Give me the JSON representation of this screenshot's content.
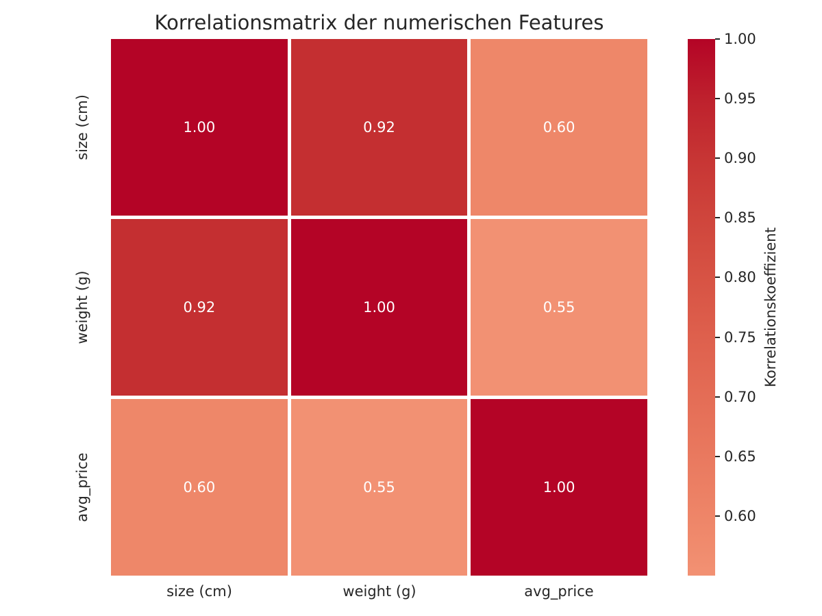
{
  "chart_data": {
    "type": "heatmap",
    "title": "Korrelationsmatrix der numerischen Features",
    "categories": [
      "size (cm)",
      "weight (g)",
      "avg_price"
    ],
    "x_tick_labels": [
      "size (cm)",
      "weight (g)",
      "avg_price"
    ],
    "y_tick_labels": [
      "size (cm)",
      "weight (g)",
      "avg_price"
    ],
    "matrix": [
      [
        1.0,
        0.92,
        0.6
      ],
      [
        0.92,
        1.0,
        0.55
      ],
      [
        0.6,
        0.55,
        1.0
      ]
    ],
    "cells": [
      {
        "row": "size (cm)",
        "col": "size (cm)",
        "value": 1.0,
        "label": "1.00",
        "color": "#b40426"
      },
      {
        "row": "size (cm)",
        "col": "weight (g)",
        "value": 0.92,
        "label": "0.92",
        "color": "#c42f31"
      },
      {
        "row": "size (cm)",
        "col": "avg_price",
        "value": 0.6,
        "label": "0.60",
        "color": "#ee8769"
      },
      {
        "row": "weight (g)",
        "col": "size (cm)",
        "value": 0.92,
        "label": "0.92",
        "color": "#c42f31"
      },
      {
        "row": "weight (g)",
        "col": "weight (g)",
        "value": 1.0,
        "label": "1.00",
        "color": "#b40426"
      },
      {
        "row": "weight (g)",
        "col": "avg_price",
        "value": 0.55,
        "label": "0.55",
        "color": "#f29173"
      },
      {
        "row": "avg_price",
        "col": "size (cm)",
        "value": 0.6,
        "label": "0.60",
        "color": "#ee8769"
      },
      {
        "row": "avg_price",
        "col": "weight (g)",
        "value": 0.55,
        "label": "0.55",
        "color": "#f29173"
      },
      {
        "row": "avg_price",
        "col": "avg_price",
        "value": 1.0,
        "label": "1.00",
        "color": "#b40426"
      }
    ],
    "annotation_text_color": "#ffffff",
    "axis_text_color": "#262626",
    "background_color": "#ffffff",
    "grid_line_color": "#ffffff",
    "colorbar": {
      "label": "Korrelationskoeffizient",
      "vmin": 0.55,
      "vmax": 1.0,
      "ticks": [
        {
          "value": 1.0,
          "label": "1.00"
        },
        {
          "value": 0.95,
          "label": "0.95"
        },
        {
          "value": 0.9,
          "label": "0.90"
        },
        {
          "value": 0.85,
          "label": "0.85"
        },
        {
          "value": 0.8,
          "label": "0.80"
        },
        {
          "value": 0.75,
          "label": "0.75"
        },
        {
          "value": 0.7,
          "label": "0.70"
        },
        {
          "value": 0.65,
          "label": "0.65"
        },
        {
          "value": 0.6,
          "label": "0.60"
        }
      ],
      "gradient_stops_top_to_bottom": [
        "#b40426",
        "#be212d",
        "#c73534",
        "#cf453c",
        "#d75344",
        "#de604d",
        "#e46d56",
        "#e9795f",
        "#ee8568",
        "#f29173"
      ]
    }
  }
}
